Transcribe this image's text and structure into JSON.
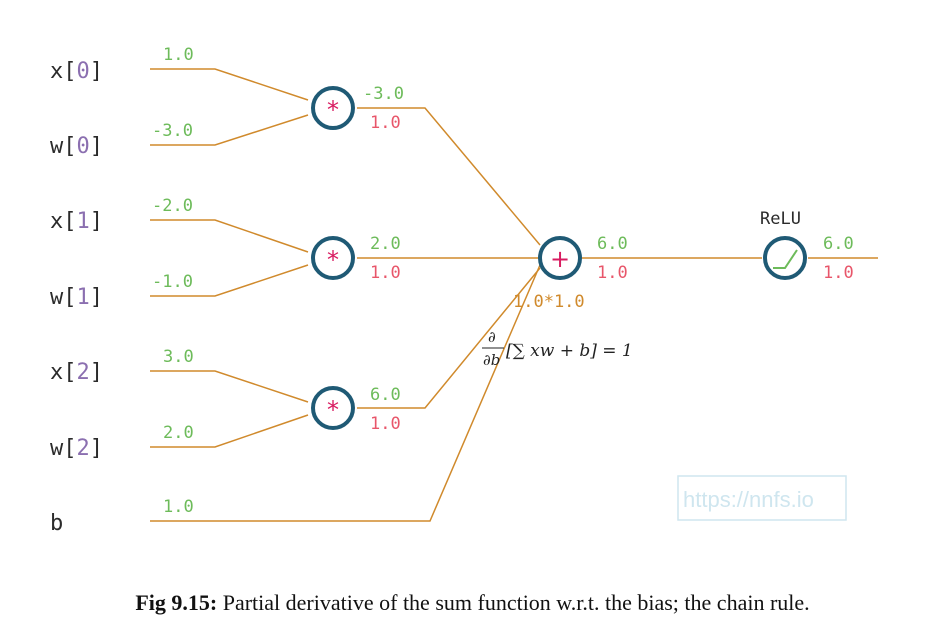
{
  "inputs": [
    {
      "name": "x",
      "index": "0",
      "value": "1.0"
    },
    {
      "name": "w",
      "index": "0",
      "value": "-3.0"
    },
    {
      "name": "x",
      "index": "1",
      "value": "-2.0"
    },
    {
      "name": "w",
      "index": "1",
      "value": "-1.0"
    },
    {
      "name": "x",
      "index": "2",
      "value": "3.0"
    },
    {
      "name": "w",
      "index": "2",
      "value": "2.0"
    },
    {
      "name": "b",
      "index": "",
      "value": "1.0"
    }
  ],
  "mult_nodes": [
    {
      "symbol": "*",
      "output": "-3.0",
      "gradient": "1.0"
    },
    {
      "symbol": "*",
      "output": "2.0",
      "gradient": "1.0"
    },
    {
      "symbol": "*",
      "output": "6.0",
      "gradient": "1.0"
    }
  ],
  "sum_node": {
    "symbol": "+",
    "output": "6.0",
    "gradient": "1.0",
    "chain_note": "1.0*1.0"
  },
  "relu_node": {
    "label": "ReLU",
    "output": "6.0",
    "gradient": "1.0"
  },
  "formula": {
    "numerator": "∂",
    "denominator": "∂b",
    "body": "[∑ xw + b] = 1"
  },
  "watermark": "https://nnfs.io",
  "caption": {
    "label": "Fig 9.15:",
    "text": " Partial derivative of the sum function w.r.t. the bias; the chain rule."
  },
  "colors": {
    "forward": "#6dbb5a",
    "gradient": "#e8566a",
    "wire": "#d08a2c",
    "node_border": "#1f5a75",
    "operator": "#d81b60",
    "index": "#8b6fb0"
  }
}
